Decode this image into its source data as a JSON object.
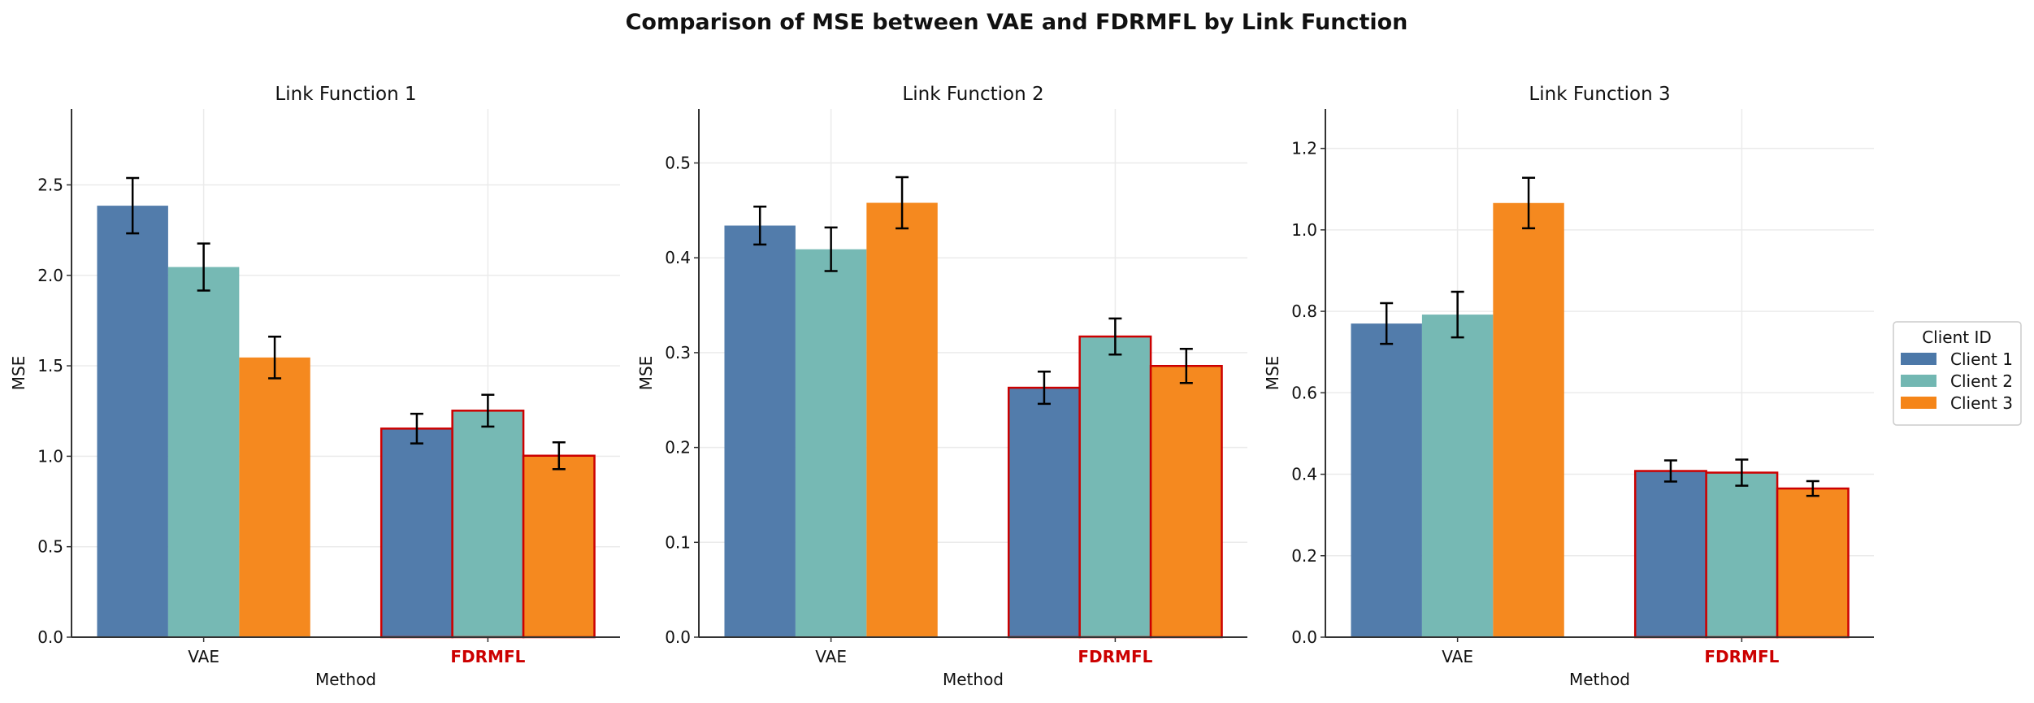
{
  "title": "Comparison of MSE between VAE and FDRMFL by Link Function",
  "legend": {
    "title": "Client ID",
    "placement": "center-right",
    "entries": [
      "Client 1",
      "Client 2",
      "Client 3"
    ]
  },
  "colors": {
    "Client 1": "#4c78a8",
    "Client 2": "#72b7b2",
    "Client 3": "#f58518",
    "highlight_edge": "#cc0000",
    "highlight_label": "#cc0000"
  },
  "chart_data": [
    {
      "type": "bar",
      "title": "Link Function 1",
      "xlabel": "Method",
      "ylabel": "MSE",
      "categories": [
        "VAE",
        "FDRMFL"
      ],
      "highlighted_category": "FDRMFL",
      "ylim": [
        0,
        2.92
      ],
      "yticks": [
        "0.0",
        "0.5",
        "1.0",
        "1.5",
        "2.0",
        "2.5"
      ],
      "grid": true,
      "series": [
        {
          "name": "Client 1",
          "values": [
            2.385,
            1.153
          ],
          "errors": [
            0.153,
            0.082
          ]
        },
        {
          "name": "Client 2",
          "values": [
            2.046,
            1.252
          ],
          "errors": [
            0.13,
            0.088
          ]
        },
        {
          "name": "Client 3",
          "values": [
            1.546,
            1.003
          ],
          "errors": [
            0.115,
            0.074
          ]
        }
      ]
    },
    {
      "type": "bar",
      "title": "Link Function 2",
      "xlabel": "Method",
      "ylabel": "MSE",
      "categories": [
        "VAE",
        "FDRMFL"
      ],
      "highlighted_category": "FDRMFL",
      "ylim": [
        0,
        0.557
      ],
      "yticks": [
        "0.0",
        "0.1",
        "0.2",
        "0.3",
        "0.4",
        "0.5"
      ],
      "grid": true,
      "series": [
        {
          "name": "Client 1",
          "values": [
            0.434,
            0.263
          ],
          "errors": [
            0.02,
            0.017
          ]
        },
        {
          "name": "Client 2",
          "values": [
            0.409,
            0.317
          ],
          "errors": [
            0.023,
            0.019
          ]
        },
        {
          "name": "Client 3",
          "values": [
            0.458,
            0.286
          ],
          "errors": [
            0.027,
            0.018
          ]
        }
      ]
    },
    {
      "type": "bar",
      "title": "Link Function 3",
      "xlabel": "Method",
      "ylabel": "MSE",
      "categories": [
        "VAE",
        "FDRMFL"
      ],
      "highlighted_category": "FDRMFL",
      "ylim": [
        0,
        1.297
      ],
      "yticks": [
        "0.0",
        "0.2",
        "0.4",
        "0.6",
        "0.8",
        "1.0",
        "1.2"
      ],
      "grid": true,
      "series": [
        {
          "name": "Client 1",
          "values": [
            0.77,
            0.408
          ],
          "errors": [
            0.05,
            0.026
          ]
        },
        {
          "name": "Client 2",
          "values": [
            0.792,
            0.404
          ],
          "errors": [
            0.056,
            0.032
          ]
        },
        {
          "name": "Client 3",
          "values": [
            1.066,
            0.365
          ],
          "errors": [
            0.062,
            0.018
          ]
        }
      ]
    }
  ]
}
